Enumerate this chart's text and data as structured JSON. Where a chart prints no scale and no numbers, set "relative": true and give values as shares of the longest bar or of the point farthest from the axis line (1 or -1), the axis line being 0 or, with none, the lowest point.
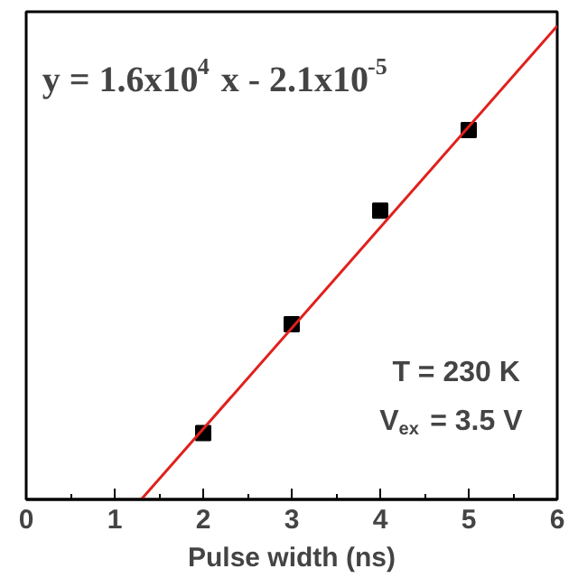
{
  "chart_data": {
    "type": "scatter",
    "relative": true,
    "xlabel": "Pulse width (ns)",
    "xlim": [
      0,
      6
    ],
    "xticks": [
      0,
      1,
      2,
      3,
      4,
      5,
      6
    ],
    "grid": false,
    "annotations": [
      "y = 1.6x10$^{4}$ x - 2.1x10$^{-5}$",
      "T = 230 K",
      "V$_{ex}$ = 3.5 V"
    ],
    "series": [
      {
        "marker": "square",
        "color": "#000000",
        "x": [
          2,
          3,
          4,
          5
        ],
        "values": [
          0.14,
          0.37,
          0.61,
          0.78
        ]
      },
      {
        "type": "line",
        "color": "#e0201c",
        "x": [
          1.3,
          6
        ],
        "values": [
          0,
          1.0
        ]
      }
    ]
  }
}
